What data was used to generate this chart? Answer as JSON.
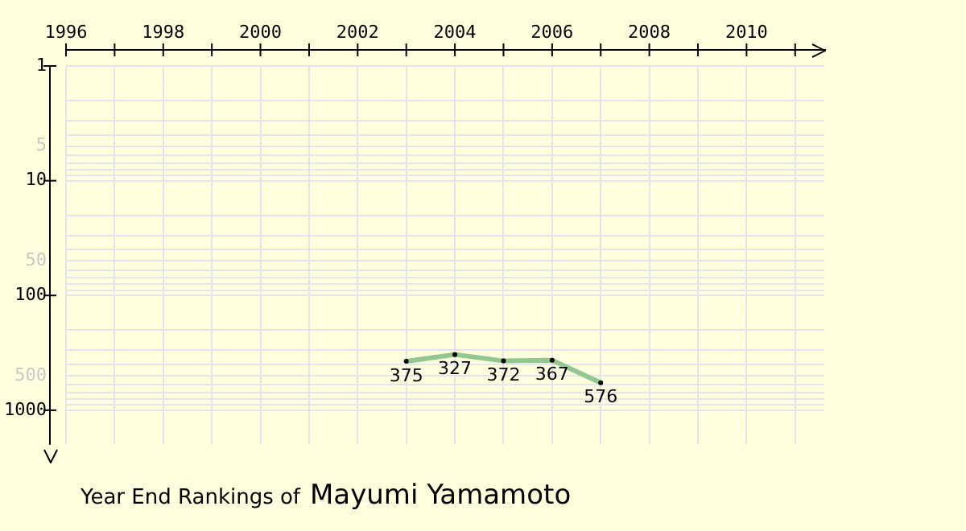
{
  "chart_data": {
    "type": "line",
    "title": "Year End Rankings of",
    "subtitle": "Mayumi Yamamoto",
    "x": [
      2003,
      2004,
      2005,
      2006,
      2007
    ],
    "series": [
      {
        "color": "#90c890",
        "values": [
          375,
          327,
          372,
          367,
          576
        ]
      }
    ],
    "xlim": [
      1996,
      2011.6
    ],
    "xticks": [
      1996,
      {
        "value": 1997,
        "label": null
      },
      1998,
      {
        "value": 1999,
        "label": null
      },
      2000,
      {
        "value": 2001,
        "label": null
      },
      2002,
      {
        "value": 2003,
        "label": null
      },
      2004,
      {
        "value": 2005,
        "label": null
      },
      2006,
      {
        "value": 2007,
        "label": null
      },
      2008,
      {
        "value": 2009,
        "label": null
      },
      2010,
      {
        "value": 2011,
        "label": null
      }
    ],
    "ylim": [
      2000,
      1
    ],
    "log": true,
    "yticks": [
      1,
      {
        "value": 2,
        "label": null
      },
      {
        "value": 3,
        "label": null
      },
      {
        "value": 4,
        "label": null
      },
      5,
      {
        "value": 6,
        "label": null
      },
      {
        "value": 7,
        "label": null
      },
      {
        "value": 8,
        "label": null
      },
      {
        "value": 9,
        "label": null
      },
      10,
      {
        "value": 20,
        "label": null
      },
      {
        "value": 30,
        "label": null
      },
      {
        "value": 40,
        "label": null
      },
      50,
      {
        "value": 60,
        "label": null
      },
      {
        "value": 70,
        "label": null
      },
      {
        "value": 80,
        "label": null
      },
      {
        "value": 90,
        "label": null
      },
      100,
      {
        "value": 200,
        "label": null
      },
      {
        "value": 300,
        "label": null
      },
      {
        "value": 400,
        "label": null
      },
      500,
      {
        "value": 600,
        "label": null
      },
      {
        "value": 700,
        "label": null
      },
      {
        "value": 800,
        "label": null
      },
      {
        "value": 900,
        "label": null
      },
      1000
    ],
    "grid": true,
    "marker": "circle",
    "line_style": "solid",
    "data_labels": true,
    "legend": false
  }
}
